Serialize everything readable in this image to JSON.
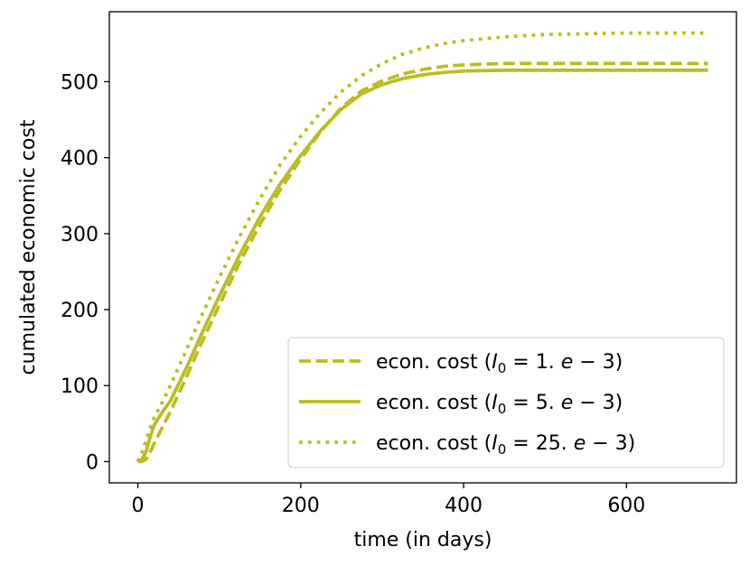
{
  "chart_data": {
    "type": "line",
    "xlabel": "time (in days)",
    "ylabel": "cumulated economic cost",
    "xlim": [
      -35,
      735
    ],
    "ylim": [
      -28,
      592
    ],
    "xticks": [
      0,
      200,
      400,
      600
    ],
    "yticks": [
      0,
      100,
      200,
      300,
      400,
      500
    ],
    "legend_position": "lower-right",
    "color": "#bcbd22",
    "series": [
      {
        "name": "econ. cost (I0 = 1. e − 3)",
        "legend": {
          "pre": "econ. cost (",
          "I": "I",
          "sub": "0",
          "post": " = 1. ",
          "e": "e",
          "tail": " − 3)"
        },
        "style": "dashed",
        "x": [
          0,
          5,
          10,
          15,
          20,
          30,
          40,
          60,
          80,
          100,
          125,
          150,
          175,
          200,
          225,
          250,
          275,
          300,
          325,
          350,
          375,
          400,
          450,
          500,
          550,
          600,
          650,
          700
        ],
        "y": [
          0,
          0,
          3,
          12,
          24,
          45,
          66,
          112,
          160,
          206,
          262,
          312,
          358,
          398,
          435,
          466,
          488,
          501,
          510,
          516,
          520,
          522,
          524,
          524,
          524,
          524,
          524,
          524
        ]
      },
      {
        "name": "econ. cost (I0 = 5. e − 3)",
        "legend": {
          "pre": "econ. cost (",
          "I": "I",
          "sub": "0",
          "post": " = 5. ",
          "e": "e",
          "tail": " − 3)"
        },
        "style": "solid",
        "x": [
          0,
          5,
          10,
          15,
          20,
          30,
          40,
          60,
          80,
          100,
          125,
          150,
          175,
          200,
          225,
          250,
          275,
          300,
          325,
          350,
          375,
          400,
          450,
          500,
          550,
          600,
          650,
          700
        ],
        "y": [
          0,
          3,
          13,
          32,
          48,
          65,
          80,
          124,
          172,
          218,
          272,
          322,
          366,
          403,
          436,
          464,
          484,
          496,
          504,
          509,
          512,
          514,
          515,
          515,
          515,
          515,
          515,
          515
        ]
      },
      {
        "name": "econ. cost (I0 = 25. e − 3)",
        "legend": {
          "pre": "econ. cost (",
          "I": "I",
          "sub": "0",
          "post": " = 25. ",
          "e": "e",
          "tail": " − 3)"
        },
        "style": "dotted",
        "x": [
          0,
          5,
          10,
          15,
          20,
          30,
          40,
          60,
          80,
          100,
          125,
          150,
          175,
          200,
          225,
          250,
          275,
          300,
          325,
          350,
          375,
          400,
          450,
          500,
          550,
          600,
          650,
          700
        ],
        "y": [
          0,
          12,
          28,
          44,
          58,
          78,
          100,
          148,
          196,
          242,
          296,
          346,
          391,
          428,
          460,
          487,
          508,
          524,
          536,
          544,
          550,
          554,
          559,
          562,
          563,
          564,
          564,
          564
        ]
      }
    ]
  }
}
